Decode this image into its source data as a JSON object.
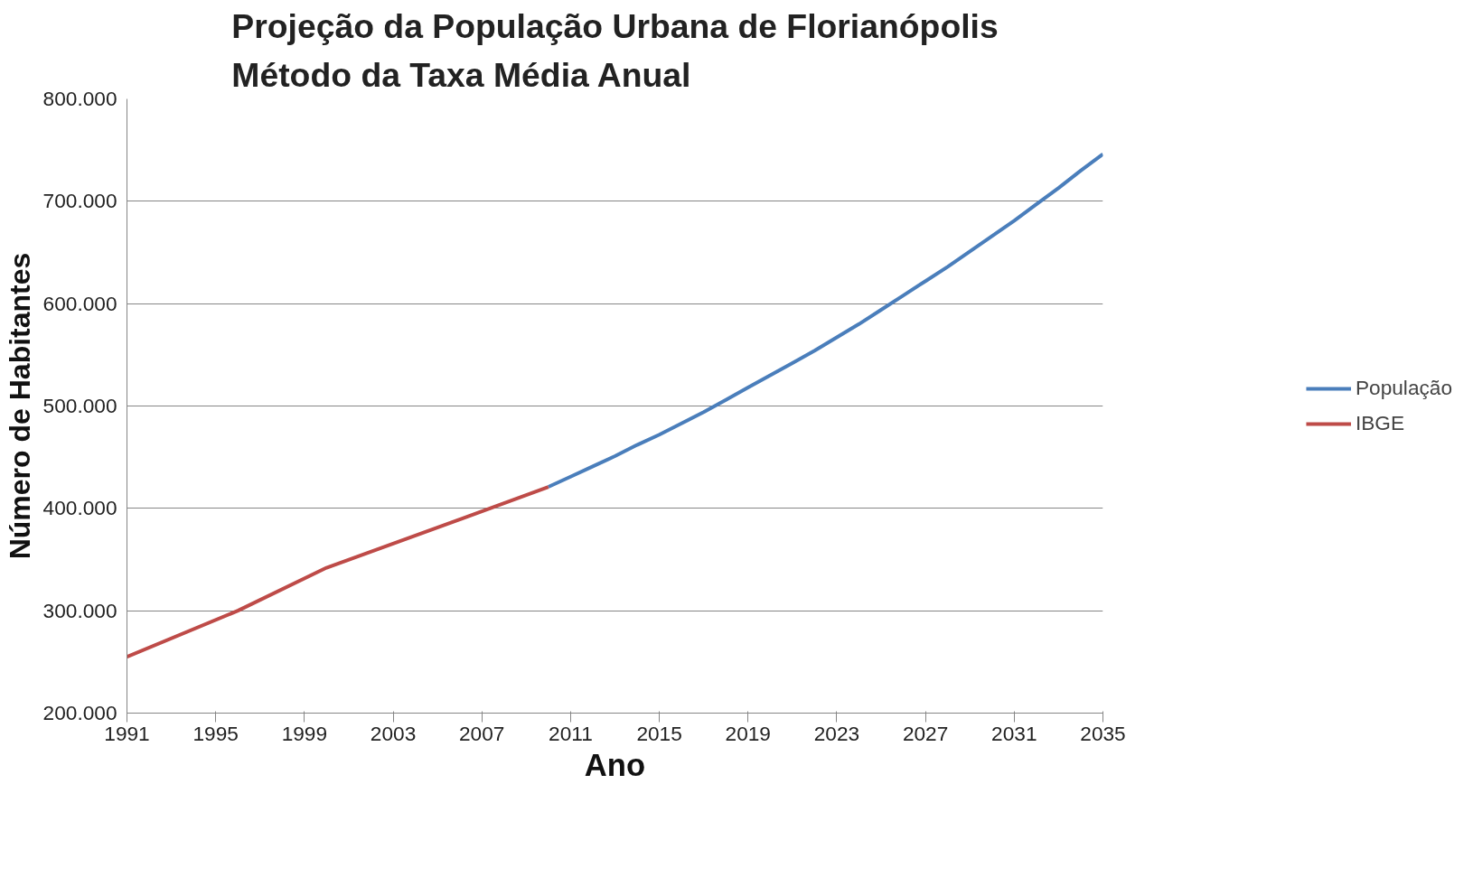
{
  "chart_data": {
    "type": "line",
    "title": "Projeção da População Urbana de Florianópolis\nMétodo da Taxa Média Anual",
    "xlabel": "Ano",
    "ylabel": "Número de Habitantes",
    "series": [
      {
        "name": "População",
        "color": "#4a7ebb",
        "x": [
          2010,
          2011,
          2012,
          2013,
          2014,
          2015,
          2016,
          2017,
          2018,
          2019,
          2020,
          2021,
          2022,
          2023,
          2024,
          2025,
          2026,
          2027,
          2028,
          2029,
          2030,
          2031,
          2032,
          2033,
          2034,
          2035
        ],
        "values": [
          421000,
          431000,
          441000,
          451000,
          462000,
          472000,
          483000,
          494000,
          506000,
          518000,
          530000,
          542000,
          554000,
          567000,
          580000,
          594000,
          608000,
          622000,
          636000,
          651000,
          666000,
          681000,
          697000,
          713000,
          730000,
          746000
        ]
      },
      {
        "name": "IBGE",
        "color": "#be4b48",
        "x": [
          1991,
          1996,
          2000,
          2007,
          2010
        ],
        "values": [
          255000,
          300000,
          342000,
          397000,
          421000
        ]
      }
    ],
    "xlim": [
      1991,
      2035
    ],
    "xticks": [
      1991,
      1995,
      1999,
      2003,
      2007,
      2011,
      2015,
      2019,
      2023,
      2027,
      2031,
      2035
    ],
    "ylim": [
      200000,
      800000
    ],
    "yticks": [
      {
        "value": 200000,
        "label": "200.000"
      },
      {
        "value": 300000,
        "label": "300.000"
      },
      {
        "value": 400000,
        "label": "400.000"
      },
      {
        "value": 500000,
        "label": "500.000"
      },
      {
        "value": 600000,
        "label": "600.000"
      },
      {
        "value": 700000,
        "label": "700.000"
      },
      {
        "value": 800000,
        "label": "800.000"
      }
    ],
    "grid": "y",
    "legend": "right",
    "line_style": "solid",
    "marker": "none"
  }
}
